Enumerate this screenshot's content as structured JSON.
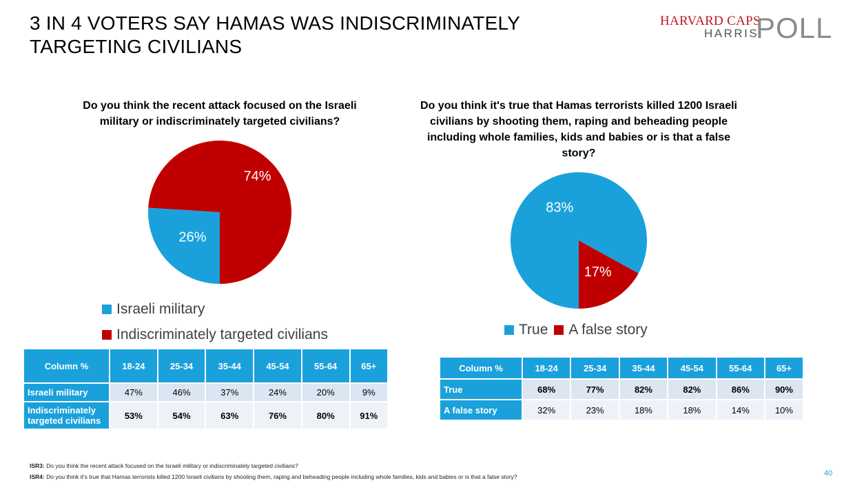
{
  "title": "3 IN 4 VOTERS SAY HAMAS WAS INDISCRIMINATELY TARGETING CIVILIANS",
  "logo": {
    "line1": "HARVARD CAPS",
    "line2": "HARRIS",
    "line3": "POLL"
  },
  "colors": {
    "blue": "#1aa1db",
    "red": "#c00000"
  },
  "chart_data": [
    {
      "type": "pie",
      "title": "Do you think the recent attack focused on the Israeli military or indiscriminately targeted civilians?",
      "categories": [
        "Israeli military",
        "Indiscriminately targeted civilians"
      ],
      "values": [
        26,
        74
      ],
      "labels": [
        "26%",
        "74%"
      ],
      "colors": [
        "#1aa1db",
        "#c00000"
      ],
      "legend_placement": "bottom"
    },
    {
      "type": "pie",
      "title": "Do you think it's true that Hamas terrorists killed 1200 Israeli civilians by shooting them, raping and beheading people including whole families, kids and babies or is that a false story?",
      "categories": [
        "True",
        "A false story"
      ],
      "values": [
        83,
        17
      ],
      "labels": [
        "83%",
        "17%"
      ],
      "colors": [
        "#1aa1db",
        "#c00000"
      ],
      "legend_placement": "bottom"
    },
    {
      "type": "table",
      "columns": [
        "Column %",
        "18-24",
        "25-34",
        "35-44",
        "45-54",
        "55-64",
        "65+"
      ],
      "rows": [
        {
          "label": "Israeli military",
          "values": [
            "47%",
            "46%",
            "37%",
            "24%",
            "20%",
            "9%"
          ]
        },
        {
          "label": "Indiscriminately targeted civilians",
          "values": [
            "53%",
            "54%",
            "63%",
            "76%",
            "80%",
            "91%"
          ]
        }
      ]
    },
    {
      "type": "table",
      "columns": [
        "Column %",
        "18-24",
        "25-34",
        "35-44",
        "45-54",
        "55-64",
        "65+"
      ],
      "rows": [
        {
          "label": "True",
          "values": [
            "68%",
            "77%",
            "82%",
            "82%",
            "86%",
            "90%"
          ]
        },
        {
          "label": "A false story",
          "values": [
            "32%",
            "23%",
            "18%",
            "18%",
            "14%",
            "10%"
          ]
        }
      ]
    }
  ],
  "footnotes": [
    {
      "code": "ISR3:",
      "text": "Do you think the recent attack focused on the Israeli military or indiscriminately targeted civilians?"
    },
    {
      "code": "ISR4:",
      "text": "Do you think it's true that Hamas terrorists killed 1200 Israeli civilians by shooting them, raping and beheading people including whole families, kids and babies or is that a false story?"
    }
  ],
  "page_number": "40"
}
